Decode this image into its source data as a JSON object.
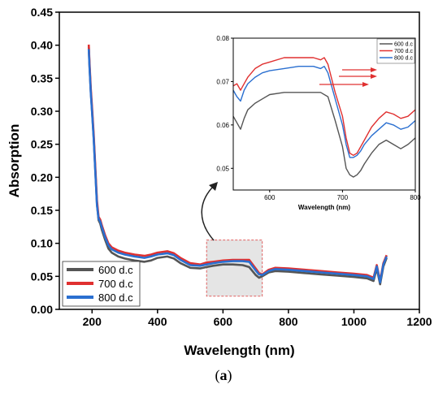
{
  "chart_data": [
    {
      "type": "line",
      "xlabel": "Wavelength (nm)",
      "ylabel": "Absorption",
      "xlim": [
        100,
        1200
      ],
      "ylim": [
        0,
        0.45
      ],
      "xticks": [
        "200",
        "400",
        "600",
        "800",
        "1000",
        "1200"
      ],
      "yticks": [
        "0.00",
        "0.05",
        "0.10",
        "0.15",
        "0.20",
        "0.25",
        "0.30",
        "0.35",
        "0.40",
        "0.45"
      ],
      "legend_position": "bottom-left",
      "highlight_region": {
        "x": [
          550,
          720
        ],
        "y": [
          0.02,
          0.105
        ]
      },
      "series": [
        {
          "name": "600 d.c",
          "color": "#555555",
          "x": [
            190,
            192,
            196,
            200,
            205,
            210,
            215,
            220,
            225,
            230,
            240,
            250,
            260,
            280,
            300,
            330,
            360,
            380,
            400,
            430,
            450,
            470,
            500,
            530,
            550,
            570,
            600,
            630,
            660,
            680,
            700,
            710,
            720,
            740,
            760,
            800,
            850,
            900,
            950,
            1000,
            1040,
            1060,
            1070,
            1080,
            1090,
            1100
          ],
          "y": [
            0.398,
            0.37,
            0.33,
            0.3,
            0.26,
            0.21,
            0.16,
            0.135,
            0.13,
            0.12,
            0.105,
            0.092,
            0.086,
            0.08,
            0.077,
            0.074,
            0.072,
            0.074,
            0.078,
            0.08,
            0.077,
            0.07,
            0.063,
            0.062,
            0.064,
            0.066,
            0.068,
            0.068,
            0.067,
            0.064,
            0.052,
            0.048,
            0.05,
            0.056,
            0.058,
            0.057,
            0.055,
            0.053,
            0.051,
            0.049,
            0.047,
            0.043,
            0.062,
            0.038,
            0.065,
            0.078
          ]
        },
        {
          "name": "700 d.c",
          "color": "#e03030",
          "x": [
            190,
            192,
            196,
            200,
            205,
            210,
            215,
            220,
            225,
            230,
            240,
            250,
            260,
            280,
            300,
            330,
            360,
            380,
            400,
            430,
            450,
            470,
            500,
            530,
            550,
            570,
            600,
            630,
            660,
            680,
            700,
            710,
            720,
            740,
            760,
            800,
            850,
            900,
            950,
            1000,
            1040,
            1060,
            1070,
            1080,
            1090,
            1100
          ],
          "y": [
            0.401,
            0.375,
            0.335,
            0.305,
            0.265,
            0.215,
            0.165,
            0.14,
            0.136,
            0.127,
            0.112,
            0.1,
            0.094,
            0.089,
            0.086,
            0.083,
            0.081,
            0.083,
            0.086,
            0.088,
            0.085,
            0.078,
            0.07,
            0.068,
            0.071,
            0.072,
            0.074,
            0.075,
            0.075,
            0.075,
            0.062,
            0.055,
            0.053,
            0.06,
            0.063,
            0.062,
            0.06,
            0.058,
            0.056,
            0.054,
            0.052,
            0.048,
            0.067,
            0.043,
            0.07,
            0.082
          ]
        },
        {
          "name": "800 d.c",
          "color": "#2a6fd0",
          "x": [
            190,
            192,
            196,
            200,
            205,
            210,
            215,
            220,
            225,
            230,
            240,
            250,
            260,
            280,
            300,
            330,
            360,
            380,
            400,
            430,
            450,
            470,
            500,
            530,
            550,
            570,
            600,
            630,
            660,
            680,
            700,
            710,
            720,
            740,
            760,
            800,
            850,
            900,
            950,
            1000,
            1040,
            1060,
            1070,
            1080,
            1090,
            1100
          ],
          "y": [
            0.394,
            0.368,
            0.328,
            0.298,
            0.258,
            0.208,
            0.158,
            0.137,
            0.133,
            0.124,
            0.109,
            0.097,
            0.091,
            0.086,
            0.083,
            0.08,
            0.078,
            0.08,
            0.083,
            0.085,
            0.082,
            0.075,
            0.067,
            0.066,
            0.068,
            0.07,
            0.072,
            0.073,
            0.073,
            0.072,
            0.059,
            0.053,
            0.052,
            0.058,
            0.061,
            0.06,
            0.058,
            0.056,
            0.054,
            0.052,
            0.05,
            0.046,
            0.065,
            0.041,
            0.068,
            0.08
          ]
        }
      ]
    },
    {
      "type": "line",
      "xlabel": "Wavelength (nm)",
      "ylabel": "",
      "xlim": [
        550,
        800
      ],
      "ylim": [
        0.045,
        0.08
      ],
      "xticks": [
        "600",
        "700",
        "800"
      ],
      "yticks": [
        "0.05",
        "0.06",
        "0.07",
        "0.08"
      ],
      "legend_position": "top-right",
      "series": [
        {
          "name": "600 d.c",
          "color": "#555555",
          "x": [
            550,
            555,
            560,
            565,
            570,
            580,
            590,
            600,
            620,
            640,
            660,
            670,
            680,
            690,
            700,
            705,
            710,
            715,
            720,
            725,
            730,
            740,
            750,
            760,
            770,
            780,
            790,
            800
          ],
          "y": [
            0.062,
            0.0605,
            0.059,
            0.0615,
            0.0635,
            0.065,
            0.066,
            0.067,
            0.0675,
            0.0675,
            0.0675,
            0.0675,
            0.0665,
            0.061,
            0.055,
            0.05,
            0.0485,
            0.048,
            0.0485,
            0.0495,
            0.051,
            0.0535,
            0.0555,
            0.0565,
            0.0555,
            0.0545,
            0.0555,
            0.057
          ]
        },
        {
          "name": "700 d.c",
          "color": "#e03030",
          "x": [
            550,
            555,
            560,
            565,
            570,
            580,
            590,
            600,
            620,
            640,
            660,
            670,
            675,
            680,
            690,
            700,
            705,
            710,
            715,
            720,
            725,
            730,
            740,
            750,
            760,
            770,
            780,
            790,
            800
          ],
          "y": [
            0.069,
            0.0695,
            0.068,
            0.0695,
            0.071,
            0.073,
            0.074,
            0.0745,
            0.0755,
            0.0755,
            0.0755,
            0.075,
            0.0755,
            0.074,
            0.0675,
            0.062,
            0.057,
            0.0535,
            0.053,
            0.0535,
            0.055,
            0.0565,
            0.0595,
            0.0615,
            0.063,
            0.0625,
            0.0615,
            0.062,
            0.0635
          ]
        },
        {
          "name": "800 d.c",
          "color": "#2a6fd0",
          "x": [
            550,
            555,
            560,
            565,
            570,
            580,
            590,
            600,
            620,
            640,
            660,
            670,
            675,
            680,
            690,
            700,
            705,
            710,
            715,
            720,
            725,
            730,
            740,
            750,
            760,
            770,
            780,
            790,
            800
          ],
          "y": [
            0.068,
            0.0665,
            0.0655,
            0.068,
            0.0695,
            0.071,
            0.072,
            0.0725,
            0.073,
            0.0735,
            0.0735,
            0.073,
            0.0735,
            0.072,
            0.066,
            0.06,
            0.0555,
            0.0525,
            0.0525,
            0.053,
            0.054,
            0.0555,
            0.0575,
            0.059,
            0.0605,
            0.06,
            0.059,
            0.0595,
            0.061
          ]
        }
      ],
      "arrows_color": "#e03030"
    }
  ],
  "caption": {
    "open": "(",
    "letter": "a",
    "close": ")"
  }
}
